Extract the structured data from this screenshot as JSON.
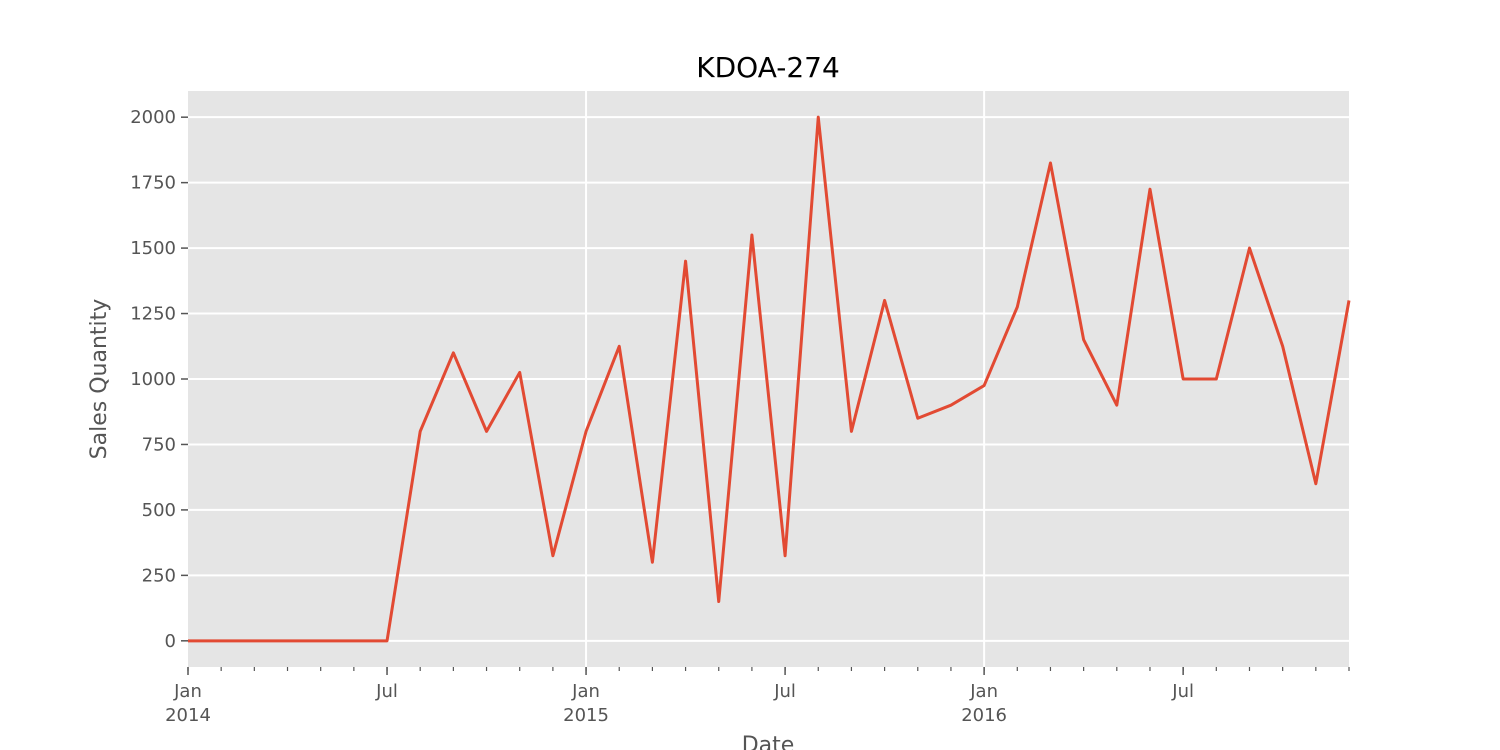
{
  "chart_data": {
    "type": "line",
    "title": "KDOA-274",
    "xlabel": "Date",
    "ylabel": "Sales Quantity",
    "ylim": [
      -100,
      2100
    ],
    "yticks": [
      0,
      250,
      500,
      750,
      1000,
      1250,
      1500,
      1750,
      2000
    ],
    "grid": true,
    "x_range": [
      "2014-01",
      "2016-12"
    ],
    "x_major_ticks": [
      {
        "month": "2014-01",
        "label": "Jan",
        "sublabel": "2014"
      },
      {
        "month": "2014-07",
        "label": "Jul",
        "sublabel": ""
      },
      {
        "month": "2015-01",
        "label": "Jan",
        "sublabel": "2015"
      },
      {
        "month": "2015-07",
        "label": "Jul",
        "sublabel": ""
      },
      {
        "month": "2016-01",
        "label": "Jan",
        "sublabel": "2016"
      },
      {
        "month": "2016-07",
        "label": "Jul",
        "sublabel": ""
      }
    ],
    "x_gridlines": [
      "2015-01",
      "2016-01"
    ],
    "series": [
      {
        "name": "KDOA-274",
        "color": "#E24A33",
        "x": [
          "2014-01",
          "2014-02",
          "2014-03",
          "2014-04",
          "2014-05",
          "2014-06",
          "2014-07",
          "2014-08",
          "2014-09",
          "2014-10",
          "2014-11",
          "2014-12",
          "2015-01",
          "2015-02",
          "2015-03",
          "2015-04",
          "2015-05",
          "2015-06",
          "2015-07",
          "2015-08",
          "2015-09",
          "2015-10",
          "2015-11",
          "2015-12",
          "2016-01",
          "2016-02",
          "2016-03",
          "2016-04",
          "2016-05",
          "2016-06",
          "2016-07",
          "2016-08",
          "2016-09",
          "2016-10",
          "2016-11",
          "2016-12"
        ],
        "values": [
          0,
          0,
          0,
          0,
          0,
          0,
          0,
          800,
          1100,
          800,
          1025,
          325,
          800,
          1125,
          300,
          1450,
          150,
          1550,
          325,
          2000,
          800,
          1300,
          850,
          900,
          975,
          1275,
          1825,
          1150,
          900,
          1725,
          1000,
          1000,
          1500,
          1125,
          600,
          1300
        ]
      }
    ]
  },
  "colors": {
    "plot_bg": "#E5E5E5",
    "grid": "#FFFFFF",
    "tick": "#555555"
  }
}
